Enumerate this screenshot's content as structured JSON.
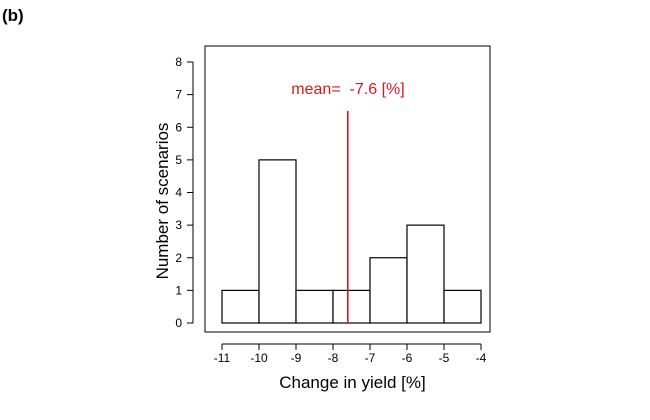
{
  "panel_label": "(b)",
  "chart_data": {
    "type": "bar",
    "subtype": "histogram",
    "bins": [
      {
        "x0": -11,
        "x1": -10,
        "count": 1
      },
      {
        "x0": -10,
        "x1": -9,
        "count": 5
      },
      {
        "x0": -9,
        "x1": -8,
        "count": 1
      },
      {
        "x0": -8,
        "x1": -7,
        "count": 1
      },
      {
        "x0": -7,
        "x1": -6,
        "count": 2
      },
      {
        "x0": -6,
        "x1": -5,
        "count": 3
      },
      {
        "x0": -5,
        "x1": -4,
        "count": 1
      }
    ],
    "xlabel": "Change in yield [%]",
    "ylabel": "Number of scenarios",
    "xlim": [
      -11,
      -4
    ],
    "ylim": [
      0,
      8
    ],
    "xticks": [
      -11,
      -10,
      -9,
      -8,
      -7,
      -6,
      -5,
      -4
    ],
    "yticks": [
      0,
      1,
      2,
      3,
      4,
      5,
      6,
      7,
      8
    ],
    "xtick_labels": [
      "-11",
      "-10",
      "-9",
      "-8",
      "-7",
      "-6",
      "-5",
      "-4"
    ],
    "ytick_labels": [
      "0",
      "1",
      "2",
      "3",
      "4",
      "5",
      "6",
      "7",
      "8"
    ],
    "mean_line": {
      "value": -7.6,
      "y_top": 6.5,
      "label": "mean=  -7.6 [%]",
      "color": "#d7191c"
    },
    "bar_fill": "#ffffff",
    "bar_stroke": "#000000",
    "grid": false,
    "legend": "none"
  }
}
